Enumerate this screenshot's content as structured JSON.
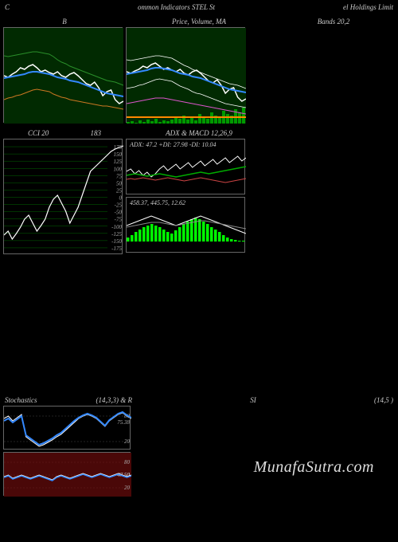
{
  "header": {
    "left": "C",
    "center": "ommon  Indicators STEL  St",
    "right": "el Holdings Limit"
  },
  "row1": {
    "title_left": "B",
    "title_center": "Price,  Volume,  MA",
    "title_right": "Bands 20,2",
    "panel_left": {
      "bg": "#012a01",
      "series": [
        {
          "color": "#ffffff",
          "width": 1.5,
          "points": [
            60,
            62,
            58,
            55,
            50,
            52,
            48,
            46,
            50,
            55,
            53,
            56,
            58,
            55,
            60,
            62,
            58,
            56,
            60,
            65,
            70,
            72,
            68,
            75,
            85,
            80,
            78,
            90,
            95,
            92
          ]
        },
        {
          "color": "#3388ff",
          "width": 2,
          "points": [
            63,
            62,
            61,
            60,
            59,
            58,
            56,
            55,
            55,
            56,
            57,
            58,
            60,
            62,
            63,
            64,
            66,
            67,
            68,
            70,
            72,
            74,
            76,
            78,
            80,
            82,
            83,
            84,
            85,
            86
          ]
        },
        {
          "color": "#2a8f2a",
          "width": 1,
          "points": [
            35,
            36,
            35,
            34,
            33,
            32,
            31,
            30,
            30,
            31,
            32,
            33,
            36,
            40,
            43,
            45,
            48,
            50,
            52,
            54,
            56,
            58,
            60,
            62,
            64,
            66,
            67,
            68,
            70,
            72
          ]
        },
        {
          "color": "#cc7722",
          "width": 1,
          "points": [
            90,
            88,
            87,
            85,
            84,
            82,
            80,
            78,
            77,
            78,
            79,
            80,
            83,
            85,
            87,
            88,
            90,
            91,
            92,
            93,
            94,
            95,
            96,
            97,
            98,
            98,
            99,
            100,
            101,
            102
          ]
        }
      ]
    },
    "panel_center_top": {
      "bg": "#012a01",
      "series": [
        {
          "color": "#ffffff",
          "width": 1.5,
          "points": [
            55,
            57,
            54,
            52,
            48,
            50,
            46,
            44,
            48,
            52,
            50,
            53,
            55,
            52,
            57,
            59,
            55,
            53,
            57,
            62,
            67,
            69,
            65,
            72,
            82,
            77,
            75,
            87,
            92,
            89
          ]
        },
        {
          "color": "#3388ff",
          "width": 2,
          "points": [
            58,
            57,
            56,
            55,
            54,
            53,
            51,
            50,
            50,
            51,
            52,
            53,
            55,
            57,
            58,
            59,
            61,
            62,
            63,
            65,
            67,
            69,
            71,
            73,
            75,
            77,
            78,
            79,
            80,
            81
          ]
        },
        {
          "color": "#ffffff",
          "width": 0.8,
          "points": [
            40,
            41,
            40,
            39,
            38,
            37,
            36,
            35,
            35,
            36,
            37,
            38,
            41,
            44,
            47,
            49,
            52,
            54,
            56,
            58,
            60,
            62,
            64,
            66,
            68,
            70,
            71,
            72,
            74,
            76
          ]
        },
        {
          "color": "#ffffff",
          "width": 0.8,
          "points": [
            76,
            75,
            74,
            72,
            71,
            69,
            67,
            65,
            64,
            65,
            66,
            67,
            70,
            73,
            75,
            77,
            80,
            82,
            83,
            85,
            87,
            89,
            91,
            93,
            95,
            96,
            97,
            98,
            99,
            100
          ]
        },
        {
          "color": "#dd55cc",
          "width": 1,
          "points": [
            95,
            94,
            93,
            92,
            91,
            90,
            89,
            88,
            88,
            88,
            89,
            90,
            91,
            92,
            93,
            94,
            95,
            96,
            97,
            98,
            99,
            100,
            101,
            102,
            103,
            104,
            105,
            106,
            107,
            108
          ]
        },
        {
          "color": "#ff8800",
          "width": 2,
          "points": [
            112,
            112,
            112,
            112,
            112,
            112,
            112,
            112,
            112,
            112,
            112,
            112,
            112,
            112,
            112,
            112,
            112,
            112,
            112,
            112,
            112,
            112,
            112,
            112,
            112,
            112,
            112,
            112,
            112,
            112
          ]
        }
      ],
      "volume": {
        "color": "#009900",
        "bars": [
          2,
          3,
          1,
          4,
          2,
          5,
          3,
          6,
          2,
          4,
          3,
          5,
          8,
          6,
          10,
          5,
          7,
          4,
          12,
          8,
          6,
          14,
          10,
          8,
          16,
          12,
          10,
          18,
          14,
          20
        ]
      }
    }
  },
  "row2": {
    "title_left": "CCI 20",
    "title_left_val": "183",
    "title_center": "ADX  & MACD 12,26,9",
    "panel_left": {
      "gridlines": [
        175,
        150,
        125,
        100,
        75,
        50,
        25,
        0,
        -25,
        -50,
        -75,
        -100,
        -125,
        -150,
        -175
      ],
      "grid_color": "#006600",
      "series": [
        {
          "color": "#ffffff",
          "width": 1.2,
          "points": [
            120,
            115,
            125,
            118,
            110,
            100,
            95,
            105,
            115,
            108,
            100,
            85,
            75,
            70,
            80,
            90,
            105,
            95,
            85,
            70,
            55,
            40,
            35,
            30,
            25,
            20,
            15,
            12,
            10,
            8
          ]
        }
      ]
    },
    "panel_center": {
      "adx_label": "ADX: 47.2  +DI: 27.98  -DI: 10.04",
      "macd_label": "458.37,  445.75,  12.62",
      "adx_series": [
        {
          "color": "#ffffff",
          "width": 1,
          "points": [
            25,
            22,
            28,
            24,
            30,
            26,
            32,
            28,
            22,
            18,
            24,
            20,
            16,
            22,
            18,
            14,
            20,
            16,
            12,
            18,
            14,
            10,
            16,
            12,
            8,
            14,
            10,
            6,
            12,
            8
          ]
        },
        {
          "color": "#00aa00",
          "width": 1.5,
          "points": [
            30,
            29,
            28,
            29,
            30,
            31,
            30,
            29,
            28,
            29,
            30,
            31,
            32,
            31,
            30,
            29,
            28,
            27,
            26,
            27,
            28,
            27,
            26,
            25,
            24,
            23,
            22,
            21,
            20,
            19
          ]
        },
        {
          "color": "#cc4444",
          "width": 1,
          "points": [
            35,
            34,
            35,
            34,
            33,
            34,
            35,
            36,
            35,
            34,
            33,
            34,
            35,
            36,
            37,
            36,
            35,
            34,
            33,
            34,
            35,
            36,
            37,
            38,
            39,
            38,
            37,
            36,
            35,
            34
          ]
        }
      ],
      "macd_bars": {
        "color": "#00ff00",
        "bars": [
          5,
          8,
          12,
          15,
          18,
          20,
          22,
          20,
          18,
          15,
          12,
          10,
          14,
          18,
          22,
          25,
          28,
          30,
          28,
          25,
          22,
          18,
          15,
          12,
          8,
          5,
          3,
          2,
          1,
          1
        ]
      },
      "macd_series": [
        {
          "color": "#ffffff",
          "width": 1,
          "points": [
            20,
            18,
            16,
            14,
            12,
            10,
            8,
            10,
            12,
            14,
            16,
            18,
            20,
            18,
            16,
            14,
            12,
            10,
            8,
            10,
            12,
            14,
            16,
            18,
            20,
            22,
            24,
            26,
            28,
            30
          ]
        },
        {
          "color": "#888888",
          "width": 1,
          "points": [
            22,
            21,
            20,
            19,
            18,
            17,
            16,
            16,
            16,
            17,
            18,
            19,
            20,
            19,
            18,
            17,
            16,
            15,
            14,
            14,
            15,
            16,
            17,
            18,
            19,
            20,
            21,
            22,
            23,
            24
          ]
        }
      ]
    }
  },
  "row3": {
    "title_left": "Stochastics",
    "title_left_params": "(14,3,3) & R",
    "title_center": "SI",
    "title_right": "(14,5                           )",
    "panel_top": {
      "labels": [
        80,
        20
      ],
      "label_mid": "75.38",
      "series": [
        {
          "color": "#ffffff",
          "width": 1,
          "points": [
            15,
            12,
            18,
            14,
            10,
            38,
            42,
            46,
            50,
            48,
            45,
            42,
            38,
            35,
            30,
            25,
            20,
            15,
            12,
            10,
            12,
            15,
            20,
            25,
            18,
            14,
            10,
            8,
            12,
            15
          ]
        },
        {
          "color": "#3388ff",
          "width": 2,
          "points": [
            18,
            15,
            20,
            16,
            12,
            36,
            40,
            44,
            48,
            46,
            43,
            40,
            36,
            33,
            28,
            23,
            18,
            14,
            11,
            9,
            11,
            14,
            19,
            24,
            17,
            13,
            9,
            7,
            11,
            14
          ]
        }
      ]
    },
    "panel_bottom": {
      "bg": "#4a0808",
      "labels": [
        80,
        50,
        20
      ],
      "label_mid": "47.50",
      "series": [
        {
          "color": "#ffffff",
          "width": 1,
          "points": [
            30,
            28,
            32,
            30,
            28,
            30,
            32,
            30,
            28,
            30,
            32,
            34,
            30,
            28,
            30,
            32,
            30,
            28,
            26,
            28,
            30,
            28,
            26,
            28,
            30,
            28,
            26,
            28,
            30,
            28
          ]
        },
        {
          "color": "#3388ff",
          "width": 1.5,
          "points": [
            31,
            29,
            33,
            31,
            29,
            31,
            33,
            31,
            29,
            31,
            33,
            35,
            31,
            29,
            31,
            33,
            31,
            29,
            27,
            29,
            31,
            29,
            27,
            29,
            31,
            29,
            27,
            29,
            31,
            29
          ]
        }
      ]
    }
  },
  "watermark": "MunafaSutra.com"
}
